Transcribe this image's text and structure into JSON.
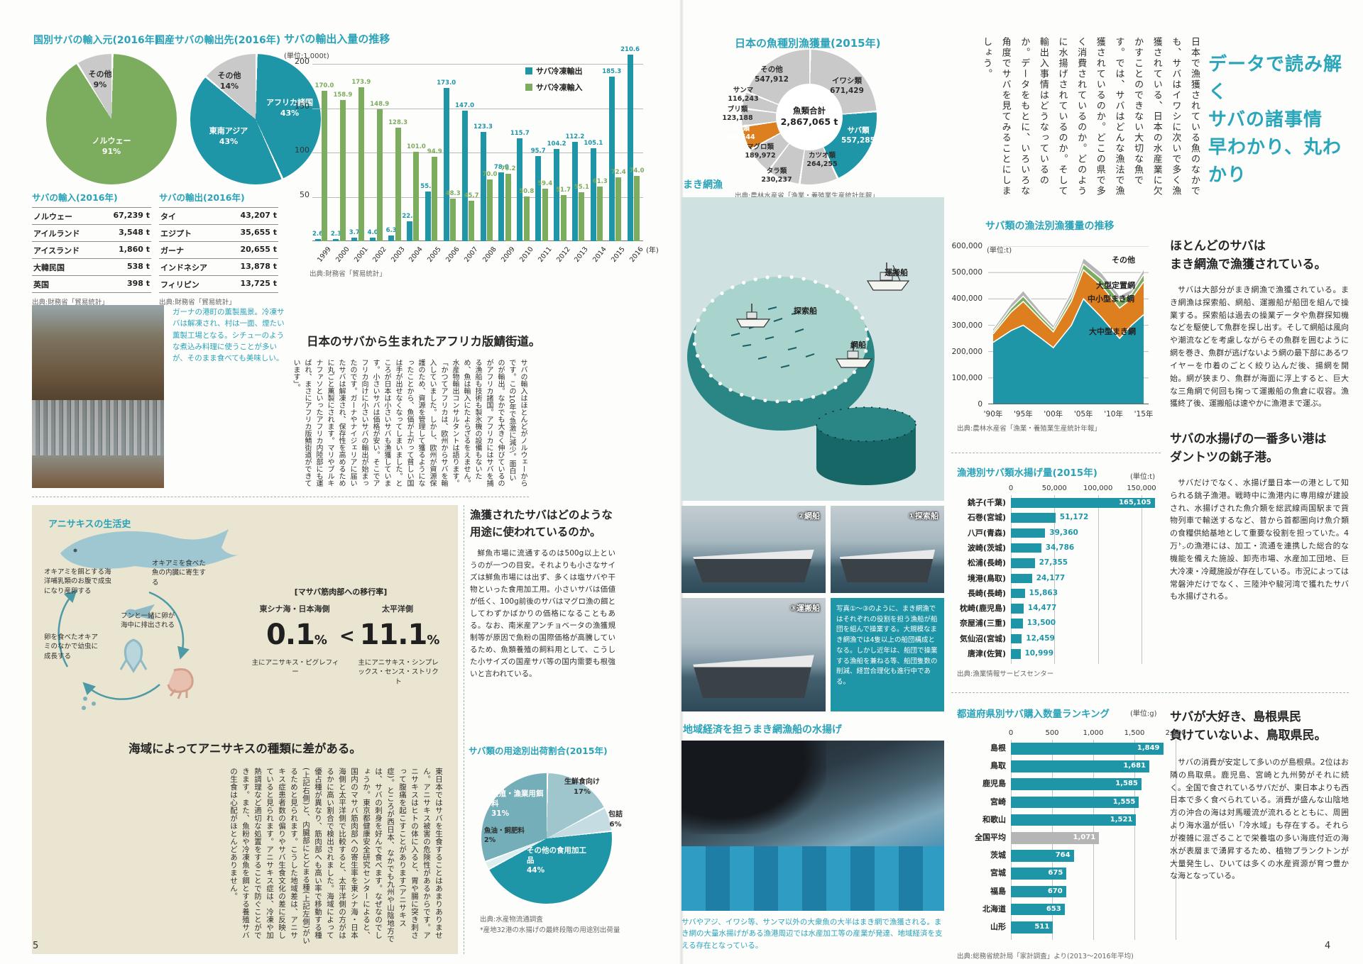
{
  "meta": {
    "page_left_number": "5",
    "page_right_number": "4"
  },
  "headline": {
    "lines": [
      "データで読み解く",
      "サバの諸事情",
      "早わかり、丸わかり"
    ]
  },
  "intro_vertical": "日本で漁獲されている魚のなかでも、サバはイワシに次いで多く漁獲されている、日本の水産業に欠かすことのできない大切な魚です。では、サバはどんな漁法で漁獲されているのか。どこの県で多く消費されているのか。どのように水揚げされているのか。そして輸出入事情はどうなっているのか。データをもとに、いろいろな角度でサバを見てみることにしましょう。",
  "left": {
    "import_table": {
      "title": "サバの輸入(2016年)",
      "rows": [
        [
          "ノルウェー",
          "67,239 t"
        ],
        [
          "アイルランド",
          "3,548 t"
        ],
        [
          "アイスランド",
          "1,860 t"
        ],
        [
          "大韓民国",
          "538 t"
        ],
        [
          "英国",
          "398 t"
        ]
      ],
      "source": "出典:財務省「貿易統計」"
    },
    "export_table": {
      "title": "サバの輸出(2016年)",
      "rows": [
        [
          "タイ",
          "43,207 t"
        ],
        [
          "エジプト",
          "35,655 t"
        ],
        [
          "ガーナ",
          "20,655 t"
        ],
        [
          "インドネシア",
          "13,878 t"
        ],
        [
          "フィリピン",
          "13,725 t"
        ]
      ],
      "source": "出典:財務省「貿易統計」"
    },
    "ghana_caption": "ガーナの港町の薫製風景。冷凍サバは解凍され、村は一面、煙たい薫製工場となる。シチューのような煮込み料理に使うことが多いが、そのまま食べても美味しい。",
    "africa": {
      "headline": "日本のサバから生まれたアフリカ版鯖街道。",
      "body": "サバの輸入はほとんどがノルウェーからです。この10年で急激に減少。面白いのが輸出。なかでも大きく伸びているのがアフリカ諸国。アフリカにはサバを捕る漁船も技術も製氷機の設備もないため、魚は輸入にたよらざるをえません。水産物輸出コンサルタントは語ります。「かつてアフリカは、欧州からサバを輸入していました。しかし、欧州が資源保護のため、資源を管理して獲るようになったことから、魚価が上がって貧しい国は手が出せなくなってしまいました。ところが日本は小さいサバも漁獲しています。小さいサバは価格が安い。そこでアフリカ向けに小さいサバの輸出が始まったのです。ガーナやナイジェリアに届いたサバは解凍され、保存性を高めるために丸ごと薫製にされます。マリやブルキナファソといったアフリカ内陸部にも運ばれ、まさにアフリカ版鯖街道ができています」。"
    },
    "anisakis": {
      "box_title": "アニサキスの生活史",
      "cycle_labels": [
        "オキアミを餌とする海洋哺乳類のお腹で成虫になり産卵する",
        "オキアミを食べた魚の内臓に寄生する",
        "フンと一緒に卵が海中に排出される",
        "卵を食べたオキアミのなかで幼虫に成長する"
      ],
      "transfer": {
        "header": "[マサバ筋肉部への移行率]",
        "left_region": "東シナ海・日本海側",
        "right_region": "太平洋側",
        "left_value": "0.1",
        "right_value": "11.1",
        "percent": "%",
        "comparator": "<",
        "left_species": "主にアニサキス・ピグレフィー",
        "right_species": "主にアニサキス・シンプレックス・センス・ストリクト"
      },
      "heading": "海域によってアニサキスの種類に差がある。",
      "body": "東日本ではサバを生食することはあまりありません。アニサキス被害の危険性があるからです。アニサキスはヒトの体に入ると、胃や腸に突き刺さって腹痛を起こすことがあります(アニサキス症)。ところが西日本、なかでも九州や山陰地方では、サバの刺身を好んで食べます。なぜなのでしょうか。東京都健康安全研究センターによると、国内のマサバ筋肉部への寄生率を東シナ海・日本海側と太平洋側で比較すると、太平洋側の方がはるかに高い割合で検出されました。海域によって優占種が異なり、筋肉部へも高い率で移動する種(上記右側)と、内臓部にとどまる種(上記左側)がいるためと見られます。こうした地域差は、アニサキス症患者数の偏りやサバ生食文化の差に反映していると見られます。アニサキス症は、冷凍や加熱調理など適切な処置をすることで防ぐことができます。また、魚粉や冷凍魚を餌とする養殖サバの生食は心配がほとんどありません。"
    },
    "usage_heading": "漁獲されたサバはどのような用途に使われているのか。",
    "usage_body": "鮮魚市場に流通するのは500g以上というのが一つの目安。それよりも小さなサイズは鮮魚市場には出ず、多くは塩サバや干物といった食用加工用。小さいサバは価値が低く、100g前後のサバはマグロ漁の餌としてわずかばかりの価格になることもある。なお、南米産アンチョベータの漁獲規制等が原因で魚粉の国際価格が高騰しているため、魚類養殖の飼料用として、こうした小サイズの国産サバ等の国内需要も根強いと言われている。"
  },
  "right": {
    "makiami_heading": "まき網漁",
    "illustration_labels": {
      "tansaku": "探索船",
      "ami": "網船",
      "unpan": "運搬船"
    },
    "photo_labels": {
      "p1": "①探索船",
      "p2": "②網船",
      "p3": "③運搬船"
    },
    "info_box": "写真①〜③のように、まき網漁ではそれぞれの役割を担う漁船が船団を組んで操業する。大規模なまき網漁では4隻以上の船団構成となる。しかし近年は、船団で操業する漁船を兼ねる等、船団隻数の削減、経営合理化も進行中である。",
    "chiiki_heading": "地域経済を担うまき網漁船の水揚げ",
    "chiiki_caption": "サバやアジ、イワシ等、サンマ以外の大衆魚の大半はまき網で漁獲される。まき網の大量水揚げがある漁港周辺では水産加工等の産業が発達、地域経済を支える存在となっている。",
    "col1": {
      "heading": [
        "ほとんどのサバは",
        "まき網漁で漁獲されている。"
      ],
      "body": "サバは大部分がまき網漁で漁獲されている。まき網漁は探索船、網船、運搬船が船団を組んで操業する。探索船は過去の操業データや魚群探知機などを駆使して魚群を探し出す。そして網船は風向や潮流などを考慮しながらその魚群を囲むように網を巻き、魚群が逃げないよう網の最下部にあるワイヤーを巾着のごとく絞り込んだ後、揚網を開始。網が狭まり、魚群が海面に浮上すると、巨大な三角網で何回も掬って運搬船の魚倉に収容。漁獲終了後、運搬船は速やかに漁港まで運ぶ。"
    },
    "col2": {
      "heading": [
        "サバの水揚げの一番多い港は",
        "ダントツの銚子港。"
      ],
      "body": "サバだけでなく、水揚げ量日本一の港として知られる銚子漁港。戦時中に漁港内に専用線が建設され、水揚げされた魚介類を総武線両国駅まで貨物列車で輸送するなど、昔から首都圏向け魚介類の食糧供給基地として重要な役割を担っていた。4万㌧の漁港には、加工・流通を連携した総合的な機能を備えた施設、卸売市場、水産加工団地、巨大冷凍・冷蔵施設が存在している。市況によっては常磐沖だけでなく、三陸沖や駿河湾で獲れたサバも水揚げされる。"
    },
    "col3": {
      "heading": [
        "サバが大好き、島根県民",
        "負けていないよ、鳥取県民。"
      ],
      "body": "サバの消費が安定して多いのが島根県。2位はお隣の鳥取県。鹿児島、宮崎と九州勢がそれに続く。全国で食されているサバだが、東日本よりも西日本で多く食べられている。消費が盛んな山陰地方の沖合の海は対馬暖流が流れるとともに、周囲より海水温が低い「冷水域」も存在する。それらが複雑に混ざることで栄養塩の多い海底付近の海水が表層まで湧昇するため、植物プランクトンが大量発生し、ひいては多くの水産資源が育つ豊かな海となっている。"
    }
  },
  "chart_data": [
    {
      "id": "import-origin",
      "type": "pie",
      "title": "国別サバの輸入元(2016年)",
      "slices": [
        {
          "label": "ノルウェー",
          "display": "91%",
          "value": 91,
          "color": "#7cac5d"
        },
        {
          "label": "その他",
          "display": "9%",
          "value": 9,
          "color": "#c9c9c9"
        }
      ]
    },
    {
      "id": "export-destination",
      "type": "pie",
      "title": "国産サバの輸出先(2016年)",
      "slices": [
        {
          "label": "アフリカ諸国",
          "display": "43%",
          "value": 43,
          "color": "#1e96a8"
        },
        {
          "label": "東南アジア",
          "display": "43%",
          "value": 43,
          "color": "#1e96a8"
        },
        {
          "label": "その他",
          "display": "14%",
          "value": 14,
          "color": "#c9c9c9"
        }
      ]
    },
    {
      "id": "trade-trend",
      "type": "bar",
      "title": "サバの輸出入量の推移",
      "unit_label": "(単位:1,000t)",
      "x_axis_suffix": "(年)",
      "ylim": [
        0,
        200
      ],
      "yticks": [
        200,
        150,
        100,
        50
      ],
      "categories": [
        "1999",
        "2000",
        "2001",
        "2002",
        "2003",
        "2004",
        "2005",
        "2006",
        "2007",
        "2008",
        "2009",
        "2010",
        "2011",
        "2012",
        "2013",
        "2014",
        "2015",
        "2016"
      ],
      "series": [
        {
          "name": "サバ冷凍輸出",
          "color": "#1e96a8",
          "values": [
            2.6,
            2.3,
            3.7,
            4.0,
            6.3,
            22.4,
            55.7,
            173.0,
            147.0,
            123.3,
            78.0,
            115.7,
            95.7,
            104.2,
            112.2,
            105.1,
            185.3,
            210.6
          ],
          "value_labels": [
            "2.6",
            "2.3",
            "3.7",
            "4.0",
            "6.3",
            "22.4",
            "55.7",
            "173.0",
            "147.0",
            "123.3",
            "78.0",
            "115.7",
            "95.7",
            "104.2",
            "112.2",
            "105.1",
            "185.3",
            "210.6"
          ]
        },
        {
          "name": "サバ冷凍輸入",
          "color": "#7cac5d",
          "values": [
            170.0,
            158.9,
            173.9,
            148.9,
            128.3,
            101.0,
            94.9,
            48.3,
            45.7,
            70.0,
            76.2,
            50.8,
            59.4,
            51.7,
            55.1,
            61.3,
            72.4,
            74.0
          ],
          "value_labels": [
            "170.0",
            "158.9",
            "173.9",
            "148.9",
            "128.3",
            "101.0",
            "94.9",
            "48.3",
            "45.7",
            "70.0",
            "76.2",
            "50.8",
            "59.4",
            "51.7",
            "55.1",
            "61.3",
            "72.4",
            "74.0"
          ]
        }
      ],
      "source": "出典:財務省「貿易統計」"
    },
    {
      "id": "species-catch",
      "type": "pie",
      "title": "日本の魚種別漁獲量(2015年)",
      "center_label": "魚類合計",
      "center_value": "2,867,065 t",
      "slices": [
        {
          "label": "イワシ類",
          "display": "671,429",
          "value": 671429,
          "color": "#c9c9c9"
        },
        {
          "label": "サバ類",
          "display": "557,285",
          "value": 557285,
          "color": "#1e96a8"
        },
        {
          "label": "カツオ類",
          "display": "264,255",
          "value": 264255,
          "color": "#c9c9c9"
        },
        {
          "label": "タラ類",
          "display": "230,237",
          "value": 230237,
          "color": "#c9c9c9"
        },
        {
          "label": "マグロ類",
          "display": "189,972",
          "value": 189972,
          "color": "#c9c9c9"
        },
        {
          "label": "アジ類",
          "display": "166,544",
          "value": 166544,
          "color": "#dd7f1e"
        },
        {
          "label": "ブリ類",
          "display": "123,188",
          "value": 123188,
          "color": "#c9c9c9"
        },
        {
          "label": "サンマ",
          "display": "116,243",
          "value": 116243,
          "color": "#c9c9c9"
        },
        {
          "label": "その他",
          "display": "547,912",
          "value": 547912,
          "color": "#c9c9c9"
        }
      ],
      "source": "出典:農林水産省「漁業・養殖業生産統計年報」"
    },
    {
      "id": "catch-by-method",
      "type": "area",
      "title": "サバ類の漁法別漁獲量の推移",
      "unit_label": "(単位:t)",
      "ylim": [
        0,
        600000
      ],
      "yticks": [
        "600,000",
        "500,000",
        "400,000",
        "300,000",
        "200,000",
        "100,000",
        "0"
      ],
      "x": [
        1990,
        1993,
        1995,
        1998,
        2000,
        2003,
        2005,
        2008,
        2011,
        2013,
        2015
      ],
      "x_ticks": [
        "'90年",
        "'95年",
        "'00年",
        "'05年",
        "'10年",
        "'15年"
      ],
      "x_tick_years": [
        1990,
        1995,
        2000,
        2005,
        2010,
        2015
      ],
      "series": [
        {
          "name": "大中型まき網",
          "color": "#1e96a8",
          "values": [
            235000,
            280000,
            300000,
            250000,
            215000,
            300000,
            400000,
            330000,
            250000,
            300000,
            340000
          ]
        },
        {
          "name": "中小型まき網",
          "color": "#dd7f1e",
          "values": [
            32000,
            70000,
            90000,
            70000,
            60000,
            90000,
            110000,
            120000,
            115000,
            100000,
            125000
          ]
        },
        {
          "name": "大型定置網",
          "color": "#7cac5d",
          "values": [
            8000,
            15000,
            20000,
            14000,
            12000,
            18000,
            22000,
            26000,
            28000,
            20000,
            28000
          ]
        },
        {
          "name": "その他",
          "color": "#b5b5b5",
          "values": [
            12000,
            18000,
            22000,
            16000,
            14000,
            20000,
            24000,
            24000,
            20000,
            16000,
            20000
          ]
        }
      ],
      "source": "出典:農林水産省「漁業・養殖業生産統計年報」"
    },
    {
      "id": "landings-by-port",
      "type": "bar",
      "orientation": "horizontal",
      "title": "漁港別サバ類水揚げ量(2015年)",
      "unit_label": "(単位:t)",
      "xlim": [
        0,
        150000
      ],
      "xticks": [
        "0",
        "50,000",
        "100,000",
        "150,000"
      ],
      "xtick_values": [
        0,
        50000,
        100000,
        150000
      ],
      "categories": [
        "銚子(千葉)",
        "石巻(宮城)",
        "八戸(青森)",
        "波崎(茨城)",
        "松浦(長崎)",
        "境港(鳥取)",
        "長崎(長崎)",
        "枕崎(鹿児島)",
        "奈屋浦(三重)",
        "気仙沼(宮城)",
        "唐津(佐賀)"
      ],
      "values": [
        165105,
        51172,
        39360,
        34786,
        27355,
        24177,
        15863,
        14477,
        13500,
        12459,
        10999
      ],
      "value_labels": [
        "165,105",
        "51,172",
        "39,360",
        "34,786",
        "27,355",
        "24,177",
        "15,863",
        "14,477",
        "13,500",
        "12,459",
        "10,999"
      ],
      "source": "出典:漁業情報サービスセンター"
    },
    {
      "id": "purchase-by-prefecture",
      "type": "bar",
      "orientation": "horizontal",
      "title": "都道府県別サバ購入数量ランキング",
      "unit_label": "(単位:g)",
      "xlim": [
        0,
        2000
      ],
      "xticks": [
        "0",
        "500",
        "1,000",
        "1,500",
        "2,000"
      ],
      "xtick_values": [
        0,
        500,
        1000,
        1500,
        2000
      ],
      "categories": [
        "島根",
        "鳥取",
        "鹿児島",
        "宮崎",
        "和歌山",
        "全国平均",
        "茨城",
        "宮城",
        "福島",
        "北海道",
        "山形"
      ],
      "values": [
        1849,
        1681,
        1585,
        1555,
        1521,
        1071,
        764,
        675,
        670,
        653,
        511
      ],
      "value_labels": [
        "1,849",
        "1,681",
        "1,585",
        "1,555",
        "1,521",
        "1,071",
        "764",
        "675",
        "670",
        "653",
        "511"
      ],
      "gray_category": "全国平均",
      "source": "出典:総務省統計局「家計調査」より(2013〜2016年平均)"
    },
    {
      "id": "usage-share",
      "type": "pie",
      "title": "サバ類の用途別出荷割合(2015年)",
      "slices": [
        {
          "label": "生鮮食向け",
          "display": "17%",
          "value": 17,
          "color": "#9fc6cd"
        },
        {
          "label": "包詰",
          "display": "6%",
          "value": 6,
          "color": "#c5dde2"
        },
        {
          "label": "その他の食用加工品",
          "display": "44%",
          "value": 44,
          "color": "#1e96a8"
        },
        {
          "label": "魚油・飼肥料",
          "display": "2%",
          "value": 2,
          "color": "#ddeef0"
        },
        {
          "label": "養殖・漁業用餌料",
          "display": "31%",
          "value": 31,
          "color": "#74aeb8"
        }
      ],
      "source_lines": [
        "出典:水産物流通調査",
        "*産地32港の水揚げの最終段階の用途別出荷量"
      ]
    }
  ]
}
